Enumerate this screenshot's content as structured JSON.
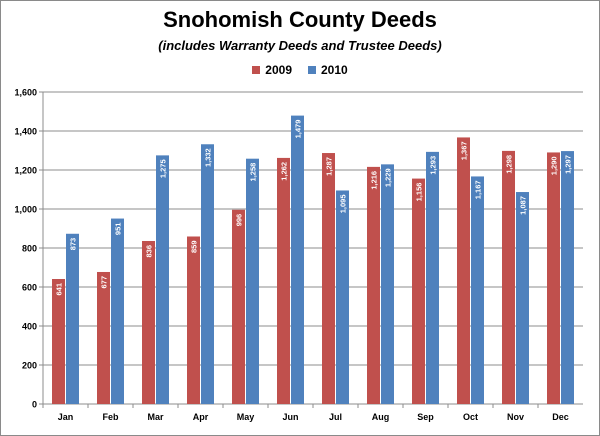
{
  "chart_data": {
    "type": "bar",
    "title": "Snohomish County Deeds",
    "subtitle": "(includes Warranty Deeds and Trustee Deeds)",
    "categories": [
      "Jan",
      "Feb",
      "Mar",
      "Apr",
      "May",
      "Jun",
      "Jul",
      "Aug",
      "Sep",
      "Oct",
      "Nov",
      "Dec"
    ],
    "series": [
      {
        "name": "2009",
        "color": "#c0504d",
        "values": [
          641,
          677,
          836,
          859,
          996,
          1262,
          1287,
          1216,
          1156,
          1367,
          1298,
          1290
        ],
        "labels": [
          "641",
          "677",
          "836",
          "859",
          "996",
          "1,262",
          "1,287",
          "1,216",
          "1,156",
          "1,367",
          "1,298",
          "1,290"
        ]
      },
      {
        "name": "2010",
        "color": "#4f81bd",
        "values": [
          873,
          951,
          1275,
          1332,
          1258,
          1479,
          1095,
          1229,
          1293,
          1167,
          1087,
          1297
        ],
        "labels": [
          "873",
          "951",
          "1,275",
          "1,332",
          "1,258",
          "1,479",
          "1,095",
          "1,229",
          "1,293",
          "1,167",
          "1,087",
          "1,297"
        ]
      }
    ],
    "ylim": [
      0,
      1600
    ],
    "yticks": [
      0,
      200,
      400,
      600,
      800,
      1000,
      1200,
      1400,
      1600
    ],
    "ytick_labels": [
      "0",
      "200",
      "400",
      "600",
      "800",
      "1,000",
      "1,200",
      "1,400",
      "1,600"
    ],
    "xlabel": "",
    "ylabel": "",
    "grid": true,
    "legend": "top-center"
  }
}
